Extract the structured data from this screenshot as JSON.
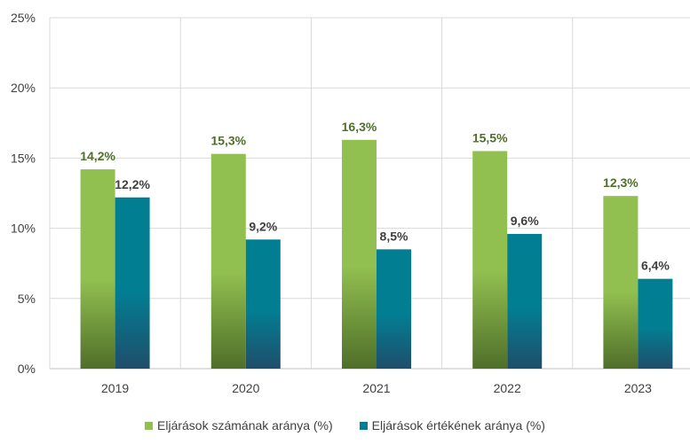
{
  "chart_data": {
    "type": "bar",
    "categories": [
      "2019",
      "2020",
      "2021",
      "2022",
      "2023"
    ],
    "series": [
      {
        "name": "Eljárások számának aránya (%)",
        "values": [
          14.2,
          15.3,
          16.3,
          15.5,
          12.3
        ],
        "labels": [
          "14,2%",
          "15,3%",
          "16,3%",
          "15,5%",
          "12,3%"
        ],
        "color": "#92c050",
        "base_color": "#4f6f2a",
        "label_color": "#4f6f2a"
      },
      {
        "name": "Eljárások értékének aránya (%)",
        "values": [
          12.2,
          9.2,
          8.5,
          9.6,
          6.4
        ],
        "labels": [
          "12,2%",
          "9,2%",
          "8,5%",
          "9,6%",
          "6,4%"
        ],
        "color": "#027e93",
        "base_color": "#1f4e6b",
        "label_color": "#404040"
      }
    ],
    "ylim": [
      0,
      25
    ],
    "yticks": [
      0,
      5,
      10,
      15,
      20,
      25
    ],
    "ytick_labels": [
      "0%",
      "5%",
      "10%",
      "15%",
      "20%",
      "25%"
    ],
    "grid": "horizontal and vertical",
    "legend": "bottom-center"
  }
}
